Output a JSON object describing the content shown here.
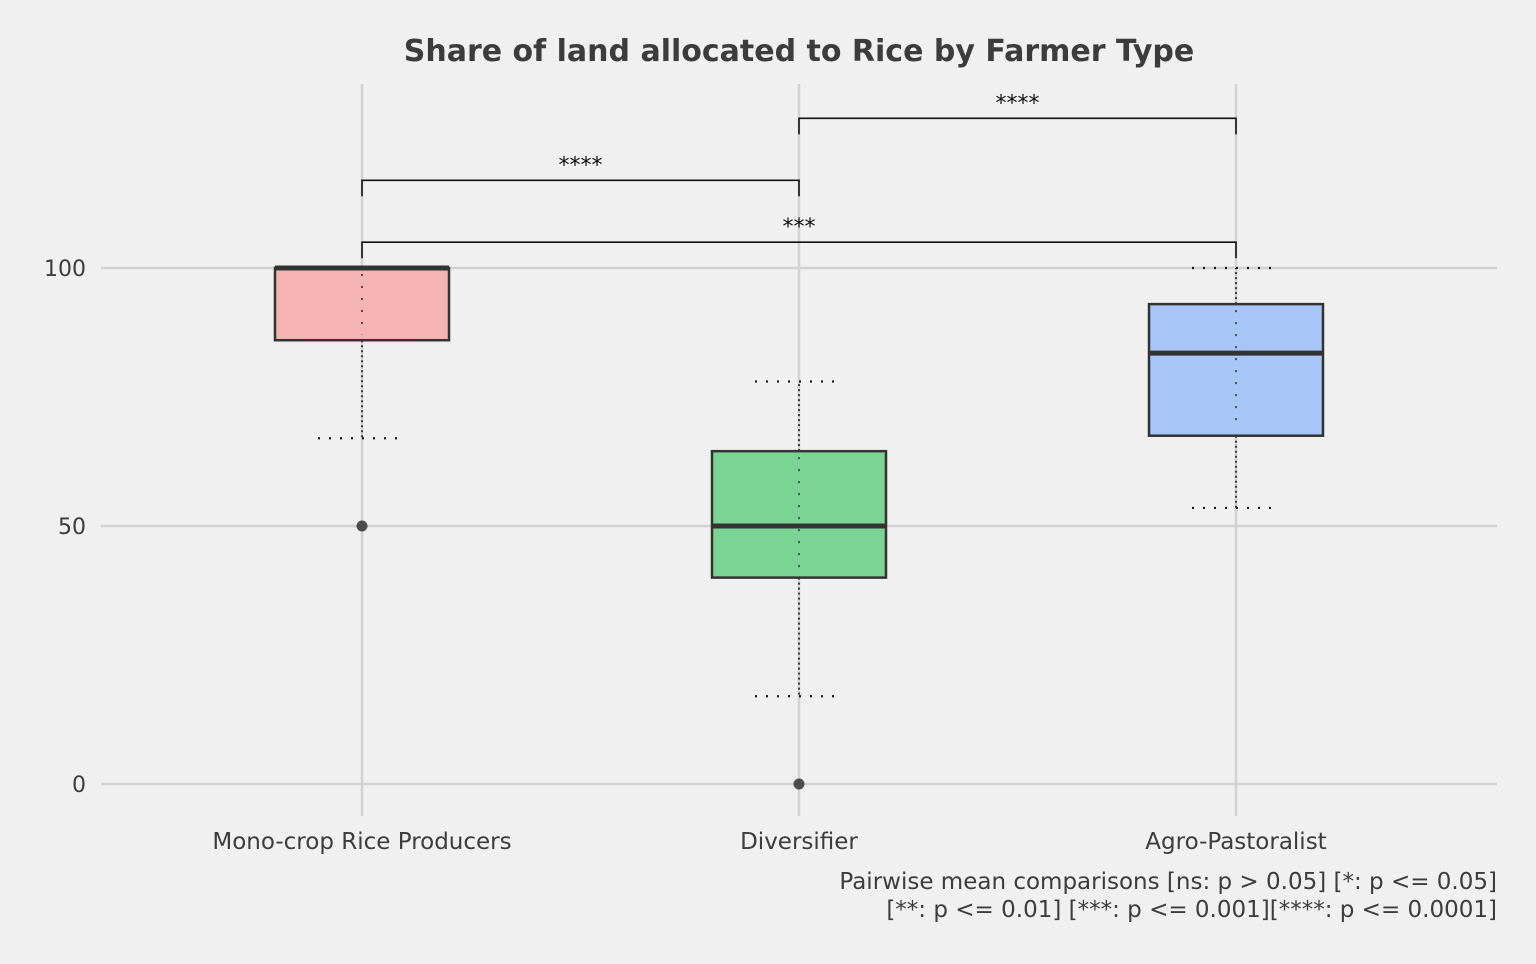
{
  "chart_data": {
    "type": "box",
    "title": "Share of land allocated to Rice by Farmer Type",
    "xlabel": "",
    "ylabel": "",
    "ylim": [
      -6,
      135
    ],
    "yticks": [
      0,
      50,
      100
    ],
    "grid": true,
    "categories": [
      "Mono-crop Rice Producers",
      "Diversifier",
      "Agro-Pastoralist"
    ],
    "colors": [
      "#f5b3b1",
      "#7ad594",
      "#a7c5f7"
    ],
    "boxes": [
      {
        "category": "Mono-crop Rice Producers",
        "q1": 86,
        "median": 100,
        "q3": 100,
        "whisker_low": 67,
        "whisker_high": 100,
        "outliers": [
          50
        ]
      },
      {
        "category": "Diversifier",
        "q1": 40,
        "median": 50,
        "q3": 64.5,
        "whisker_low": 17,
        "whisker_high": 78,
        "outliers": [
          0
        ]
      },
      {
        "category": "Agro-Pastoralist",
        "q1": 67.5,
        "median": 83.5,
        "q3": 93,
        "whisker_low": 53.5,
        "whisker_high": 100,
        "outliers": []
      }
    ],
    "comparisons": [
      {
        "from": "Mono-crop Rice Producers",
        "to": "Diversifier",
        "label": "****",
        "level": 117
      },
      {
        "from": "Diversifier",
        "to": "Agro-Pastoralist",
        "label": "****",
        "level": 129
      },
      {
        "from": "Mono-crop Rice Producers",
        "to": "Agro-Pastoralist",
        "label": "***",
        "level": 105
      }
    ],
    "caption": [
      "Pairwise mean comparisons [ns: p > 0.05] [*: p <= 0.05]",
      "[**: p <= 0.01] [***: p <= 0.001][****: p <= 0.0001]"
    ]
  }
}
